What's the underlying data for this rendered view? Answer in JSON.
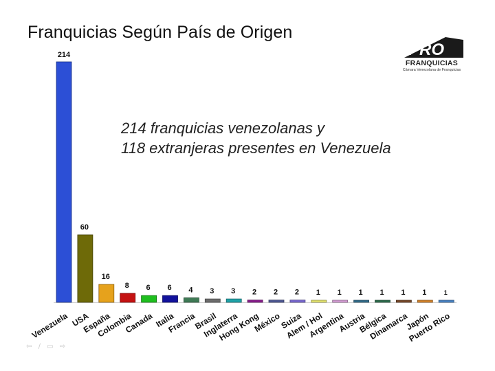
{
  "slide": {
    "title": "Franquicias Según País de Origen",
    "annotation_line1": "214 franquicias venezolanas y",
    "annotation_line2": "118 extranjeras presentes en Venezuela"
  },
  "logo": {
    "mark": "PRO",
    "name": "FRANQUICIAS",
    "subtitle": "Cámara Venezolana de Franquicias"
  },
  "nav": {
    "prev_icon": "⇦",
    "pen_icon": "∕",
    "menu_icon": "▭",
    "next_icon": "⇨"
  },
  "chart_data": {
    "type": "bar",
    "title": "",
    "xlabel": "",
    "ylabel": "",
    "grid": false,
    "legend": "none",
    "ylim": [
      0,
      214
    ],
    "categories": [
      "Venezuela",
      "USA",
      "España",
      "Colombia",
      "Canada",
      "Italia",
      "Francia",
      "Brasil",
      "Inglaterra",
      "Hong Kong",
      "México",
      "Suiza",
      "Alem / Hol",
      "Argentina",
      "Austria",
      "Bélgica",
      "Dinamarca",
      "Japón",
      "Puerto Rico"
    ],
    "values": [
      214,
      60,
      16,
      8,
      6,
      6,
      4,
      3,
      3,
      2,
      2,
      2,
      1,
      1,
      1,
      1,
      1,
      1,
      1
    ],
    "colors": [
      "#2c4fd6",
      "#6e6a08",
      "#e6a21c",
      "#c41212",
      "#1fbf1f",
      "#12129c",
      "#3f7a55",
      "#6e6e6e",
      "#20a3a8",
      "#8a1e8e",
      "#505a96",
      "#7a6ad2",
      "#e8e870",
      "#d8a0d8",
      "#336e8c",
      "#2e6e4e",
      "#7a4a2a",
      "#d8862a",
      "#4a86c8"
    ]
  }
}
